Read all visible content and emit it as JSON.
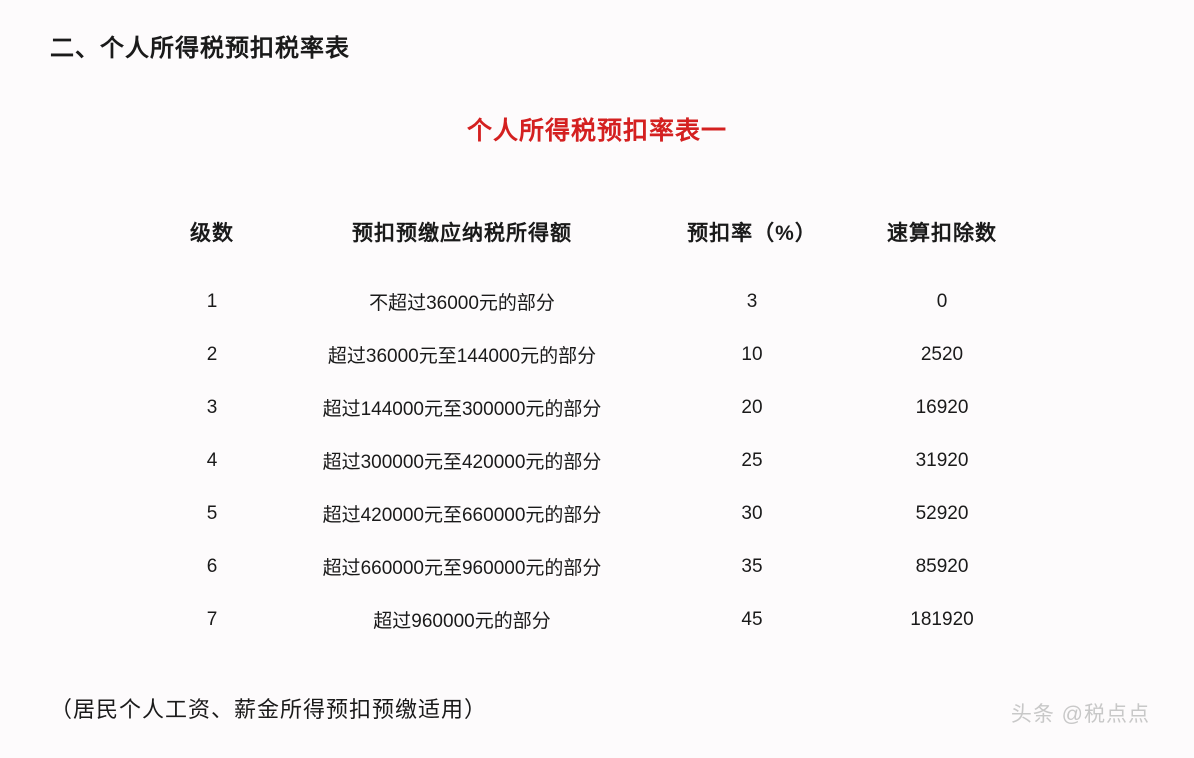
{
  "section_heading": "二、个人所得税预扣税率表",
  "table_title": "个人所得税预扣率表一",
  "table": {
    "headers": {
      "level": "级数",
      "description": "预扣预缴应纳税所得额",
      "rate": "预扣率（%）",
      "deduction": "速算扣除数"
    },
    "rows": [
      {
        "level": "1",
        "description": "不超过36000元的部分",
        "rate": "3",
        "deduction": "0"
      },
      {
        "level": "2",
        "description": "超过36000元至144000元的部分",
        "rate": "10",
        "deduction": "2520"
      },
      {
        "level": "3",
        "description": "超过144000元至300000元的部分",
        "rate": "20",
        "deduction": "16920"
      },
      {
        "level": "4",
        "description": "超过300000元至420000元的部分",
        "rate": "25",
        "deduction": "31920"
      },
      {
        "level": "5",
        "description": "超过420000元至660000元的部分",
        "rate": "30",
        "deduction": "52920"
      },
      {
        "level": "6",
        "description": "超过660000元至960000元的部分",
        "rate": "35",
        "deduction": "85920"
      },
      {
        "level": "7",
        "description": "超过960000元的部分",
        "rate": "45",
        "deduction": "181920"
      }
    ]
  },
  "footer_note": "（居民个人工资、薪金所得预扣预缴适用）",
  "watermark": "头条 @税点点",
  "styling": {
    "background_color": "#fdfbfc",
    "heading_color": "#1a1a1a",
    "heading_fontsize": 24,
    "title_color": "#d42020",
    "title_fontsize": 25,
    "header_fontsize": 21,
    "cell_fontsize": 19,
    "footer_fontsize": 22,
    "watermark_color": "#c8c8c8",
    "watermark_fontsize": 21,
    "column_widths": {
      "level": 110,
      "description": 390,
      "rate": 190,
      "deduction": 190
    }
  }
}
